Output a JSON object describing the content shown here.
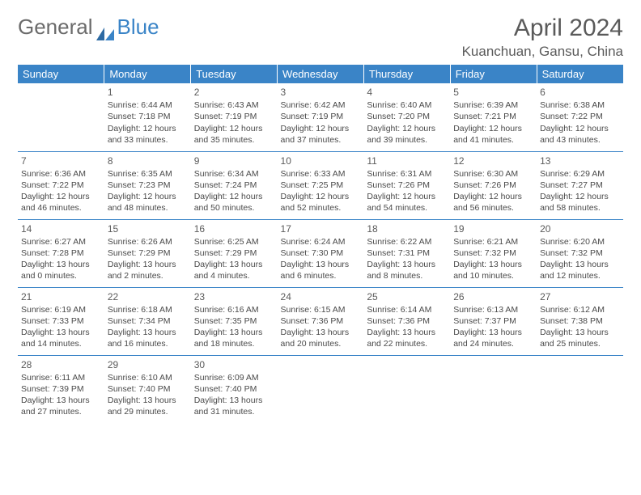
{
  "logo": {
    "part1": "General",
    "part2": "Blue"
  },
  "title": "April 2024",
  "location": "Kuanchuan, Gansu, China",
  "days_of_week": [
    "Sunday",
    "Monday",
    "Tuesday",
    "Wednesday",
    "Thursday",
    "Friday",
    "Saturday"
  ],
  "header_bg": "#3a84c7",
  "header_fg": "#ffffff",
  "border_color": "#3a84c7",
  "weeks": [
    [
      null,
      {
        "n": "1",
        "sr": "6:44 AM",
        "ss": "7:18 PM",
        "dl": "12 hours and 33 minutes."
      },
      {
        "n": "2",
        "sr": "6:43 AM",
        "ss": "7:19 PM",
        "dl": "12 hours and 35 minutes."
      },
      {
        "n": "3",
        "sr": "6:42 AM",
        "ss": "7:19 PM",
        "dl": "12 hours and 37 minutes."
      },
      {
        "n": "4",
        "sr": "6:40 AM",
        "ss": "7:20 PM",
        "dl": "12 hours and 39 minutes."
      },
      {
        "n": "5",
        "sr": "6:39 AM",
        "ss": "7:21 PM",
        "dl": "12 hours and 41 minutes."
      },
      {
        "n": "6",
        "sr": "6:38 AM",
        "ss": "7:22 PM",
        "dl": "12 hours and 43 minutes."
      }
    ],
    [
      {
        "n": "7",
        "sr": "6:36 AM",
        "ss": "7:22 PM",
        "dl": "12 hours and 46 minutes."
      },
      {
        "n": "8",
        "sr": "6:35 AM",
        "ss": "7:23 PM",
        "dl": "12 hours and 48 minutes."
      },
      {
        "n": "9",
        "sr": "6:34 AM",
        "ss": "7:24 PM",
        "dl": "12 hours and 50 minutes."
      },
      {
        "n": "10",
        "sr": "6:33 AM",
        "ss": "7:25 PM",
        "dl": "12 hours and 52 minutes."
      },
      {
        "n": "11",
        "sr": "6:31 AM",
        "ss": "7:26 PM",
        "dl": "12 hours and 54 minutes."
      },
      {
        "n": "12",
        "sr": "6:30 AM",
        "ss": "7:26 PM",
        "dl": "12 hours and 56 minutes."
      },
      {
        "n": "13",
        "sr": "6:29 AM",
        "ss": "7:27 PM",
        "dl": "12 hours and 58 minutes."
      }
    ],
    [
      {
        "n": "14",
        "sr": "6:27 AM",
        "ss": "7:28 PM",
        "dl": "13 hours and 0 minutes."
      },
      {
        "n": "15",
        "sr": "6:26 AM",
        "ss": "7:29 PM",
        "dl": "13 hours and 2 minutes."
      },
      {
        "n": "16",
        "sr": "6:25 AM",
        "ss": "7:29 PM",
        "dl": "13 hours and 4 minutes."
      },
      {
        "n": "17",
        "sr": "6:24 AM",
        "ss": "7:30 PM",
        "dl": "13 hours and 6 minutes."
      },
      {
        "n": "18",
        "sr": "6:22 AM",
        "ss": "7:31 PM",
        "dl": "13 hours and 8 minutes."
      },
      {
        "n": "19",
        "sr": "6:21 AM",
        "ss": "7:32 PM",
        "dl": "13 hours and 10 minutes."
      },
      {
        "n": "20",
        "sr": "6:20 AM",
        "ss": "7:32 PM",
        "dl": "13 hours and 12 minutes."
      }
    ],
    [
      {
        "n": "21",
        "sr": "6:19 AM",
        "ss": "7:33 PM",
        "dl": "13 hours and 14 minutes."
      },
      {
        "n": "22",
        "sr": "6:18 AM",
        "ss": "7:34 PM",
        "dl": "13 hours and 16 minutes."
      },
      {
        "n": "23",
        "sr": "6:16 AM",
        "ss": "7:35 PM",
        "dl": "13 hours and 18 minutes."
      },
      {
        "n": "24",
        "sr": "6:15 AM",
        "ss": "7:36 PM",
        "dl": "13 hours and 20 minutes."
      },
      {
        "n": "25",
        "sr": "6:14 AM",
        "ss": "7:36 PM",
        "dl": "13 hours and 22 minutes."
      },
      {
        "n": "26",
        "sr": "6:13 AM",
        "ss": "7:37 PM",
        "dl": "13 hours and 24 minutes."
      },
      {
        "n": "27",
        "sr": "6:12 AM",
        "ss": "7:38 PM",
        "dl": "13 hours and 25 minutes."
      }
    ],
    [
      {
        "n": "28",
        "sr": "6:11 AM",
        "ss": "7:39 PM",
        "dl": "13 hours and 27 minutes."
      },
      {
        "n": "29",
        "sr": "6:10 AM",
        "ss": "7:40 PM",
        "dl": "13 hours and 29 minutes."
      },
      {
        "n": "30",
        "sr": "6:09 AM",
        "ss": "7:40 PM",
        "dl": "13 hours and 31 minutes."
      },
      null,
      null,
      null,
      null
    ]
  ],
  "labels": {
    "sunrise": "Sunrise:",
    "sunset": "Sunset:",
    "daylight": "Daylight:"
  }
}
